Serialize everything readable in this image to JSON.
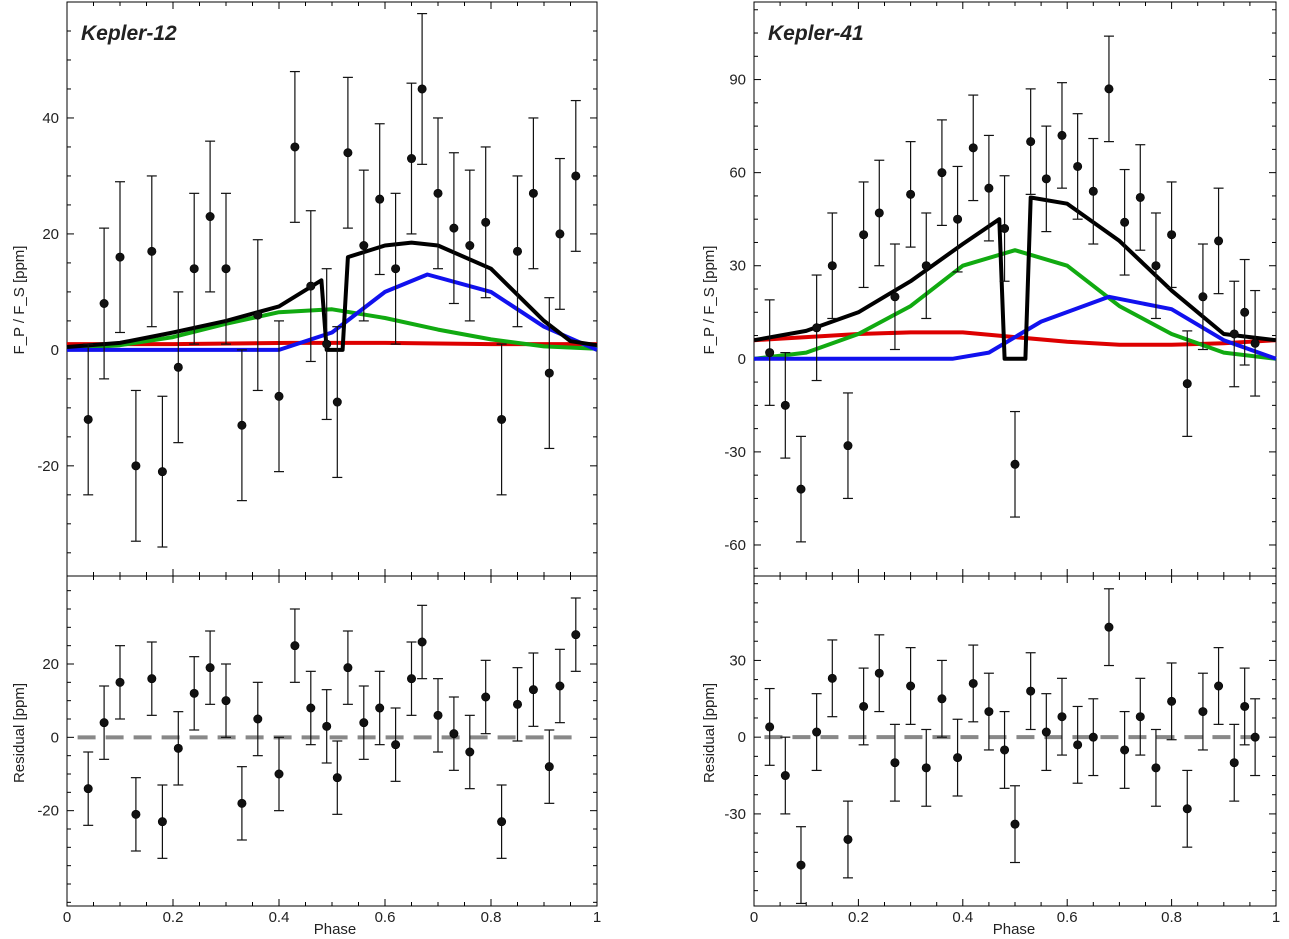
{
  "figure": {
    "xlabel": "Phase",
    "ylabel_top": "F_P / F_S [ppm]",
    "ylabel_bottom": "Residual [ppm]"
  },
  "chart_data": [
    {
      "type": "scatter",
      "panel": "Kepler-12 phase curve",
      "title": "Kepler-12",
      "xlabel": "Phase",
      "ylabel": "F_P / F_S [ppm]",
      "xlim": [
        0,
        1
      ],
      "ylim": [
        -39,
        60
      ],
      "xticks": [
        0,
        0.2,
        0.4,
        0.6,
        0.8,
        1
      ],
      "xtick_labels": [
        "0",
        "0.2",
        "0.4",
        "0.6",
        "0.8",
        "1"
      ],
      "yticks": [
        -20,
        0,
        20,
        40
      ],
      "ytick_labels": [
        "-20",
        "0",
        "20",
        "40"
      ],
      "grid": false,
      "error_bar": 13,
      "points": {
        "x": [
          0.04,
          0.07,
          0.1,
          0.13,
          0.16,
          0.18,
          0.21,
          0.24,
          0.27,
          0.3,
          0.33,
          0.36,
          0.4,
          0.43,
          0.46,
          0.49,
          0.51,
          0.53,
          0.56,
          0.59,
          0.62,
          0.65,
          0.67,
          0.7,
          0.73,
          0.76,
          0.79,
          0.82,
          0.85,
          0.88,
          0.91,
          0.93,
          0.96
        ],
        "y": [
          -12,
          8,
          16,
          -20,
          17,
          -21,
          -3,
          14,
          23,
          14,
          -13,
          6,
          -8,
          35,
          11,
          1,
          -9,
          34,
          18,
          26,
          14,
          33,
          45,
          27,
          21,
          18,
          22,
          -12,
          17,
          27,
          -4,
          20,
          30
        ]
      },
      "series": [
        {
          "color": "#dd0000",
          "x": [
            0,
            0.2,
            0.42,
            0.6,
            0.8,
            1
          ],
          "y": [
            1,
            1,
            1.2,
            1.2,
            1,
            1
          ]
        },
        {
          "color": "#11aa11",
          "x": [
            0,
            0.1,
            0.2,
            0.3,
            0.4,
            0.5,
            0.6,
            0.7,
            0.8,
            0.9,
            1
          ],
          "y": [
            0.2,
            0.8,
            2.2,
            4.5,
            6.5,
            7,
            5.5,
            3.5,
            1.8,
            0.6,
            0.2
          ]
        },
        {
          "color": "#1111ee",
          "x": [
            0,
            0.4,
            0.5,
            0.6,
            0.68,
            0.8,
            0.9,
            1
          ],
          "y": [
            0,
            0,
            3,
            10,
            13,
            10,
            4,
            0
          ]
        },
        {
          "color": "#000000",
          "x": [
            0,
            0.1,
            0.2,
            0.3,
            0.4,
            0.48,
            0.49,
            0.52,
            0.53,
            0.6,
            0.65,
            0.7,
            0.8,
            0.9,
            0.95,
            1
          ],
          "y": [
            0.5,
            1.2,
            3,
            5,
            7.5,
            12,
            0,
            0,
            16,
            18,
            18.5,
            18,
            14,
            5,
            1.5,
            0.8
          ]
        }
      ]
    },
    {
      "type": "scatter",
      "panel": "Kepler-12 residuals",
      "xlabel": "Phase",
      "ylabel": "Residual [ppm]",
      "xlim": [
        0,
        1
      ],
      "ylim": [
        -46,
        44
      ],
      "xticks": [
        0,
        0.2,
        0.4,
        0.6,
        0.8,
        1
      ],
      "xtick_labels": [
        "0",
        "0.2",
        "0.4",
        "0.6",
        "0.8",
        "1"
      ],
      "yticks": [
        -20,
        0,
        20
      ],
      "ytick_labels": [
        "-20",
        "0",
        "20"
      ],
      "grid": false,
      "error_bar": 10,
      "zero_line_color": "#888888",
      "points": {
        "x": [
          0.04,
          0.07,
          0.1,
          0.13,
          0.16,
          0.18,
          0.21,
          0.24,
          0.27,
          0.3,
          0.33,
          0.36,
          0.4,
          0.43,
          0.46,
          0.49,
          0.51,
          0.53,
          0.56,
          0.59,
          0.62,
          0.65,
          0.67,
          0.7,
          0.73,
          0.76,
          0.79,
          0.82,
          0.85,
          0.88,
          0.91,
          0.93,
          0.96
        ],
        "y": [
          -14,
          4,
          15,
          -21,
          16,
          -23,
          -3,
          12,
          19,
          10,
          -18,
          5,
          -10,
          25,
          8,
          3,
          -11,
          19,
          4,
          8,
          -2,
          16,
          26,
          6,
          1,
          -4,
          11,
          -23,
          9,
          13,
          -8,
          14,
          28
        ]
      }
    },
    {
      "type": "scatter",
      "panel": "Kepler-41 phase curve",
      "title": "Kepler-41",
      "xlabel": "Phase",
      "ylabel": "F_P / F_S [ppm]",
      "xlim": [
        0,
        1
      ],
      "ylim": [
        -70,
        115
      ],
      "xticks": [
        0,
        0.2,
        0.4,
        0.6,
        0.8,
        1
      ],
      "xtick_labels": [
        "0",
        "0.2",
        "0.4",
        "0.6",
        "0.8",
        "1"
      ],
      "yticks": [
        -60,
        -30,
        0,
        30,
        60,
        90
      ],
      "ytick_labels": [
        "-60",
        "-30",
        "0",
        "30",
        "60",
        "90"
      ],
      "grid": false,
      "error_bar": 17,
      "points": {
        "x": [
          0.03,
          0.06,
          0.09,
          0.12,
          0.15,
          0.18,
          0.21,
          0.24,
          0.27,
          0.3,
          0.33,
          0.36,
          0.39,
          0.42,
          0.45,
          0.48,
          0.5,
          0.53,
          0.56,
          0.59,
          0.62,
          0.65,
          0.68,
          0.71,
          0.74,
          0.77,
          0.8,
          0.83,
          0.86,
          0.89,
          0.92,
          0.94,
          0.96
        ],
        "y": [
          2,
          -15,
          -42,
          10,
          30,
          -28,
          40,
          47,
          20,
          53,
          30,
          60,
          45,
          68,
          55,
          42,
          -34,
          70,
          58,
          72,
          62,
          54,
          87,
          44,
          52,
          30,
          40,
          -8,
          20,
          38,
          8,
          15,
          5
        ]
      },
      "series": [
        {
          "color": "#dd0000",
          "x": [
            0,
            0.1,
            0.2,
            0.3,
            0.4,
            0.5,
            0.6,
            0.7,
            0.8,
            0.9,
            1
          ],
          "y": [
            6,
            7,
            8,
            8.5,
            8.5,
            7,
            5.5,
            4.5,
            4.5,
            5,
            6
          ]
        },
        {
          "color": "#11aa11",
          "x": [
            0,
            0.1,
            0.2,
            0.3,
            0.4,
            0.5,
            0.6,
            0.7,
            0.8,
            0.9,
            1
          ],
          "y": [
            0,
            2,
            8,
            17,
            30,
            35,
            30,
            17,
            8,
            2,
            0
          ]
        },
        {
          "color": "#1111ee",
          "x": [
            0,
            0.38,
            0.45,
            0.55,
            0.68,
            0.8,
            0.9,
            1
          ],
          "y": [
            0,
            0,
            2,
            12,
            20,
            16,
            6,
            0
          ]
        },
        {
          "color": "#000000",
          "x": [
            0,
            0.1,
            0.2,
            0.3,
            0.4,
            0.47,
            0.48,
            0.52,
            0.53,
            0.6,
            0.7,
            0.8,
            0.9,
            1
          ],
          "y": [
            6,
            9,
            15,
            25,
            37,
            45,
            0,
            0,
            52,
            50,
            38,
            22,
            8,
            6
          ]
        }
      ]
    },
    {
      "type": "scatter",
      "panel": "Kepler-41 residuals",
      "xlabel": "Phase",
      "ylabel": "Residual [ppm]",
      "xlim": [
        0,
        1
      ],
      "ylim": [
        -66,
        63
      ],
      "xticks": [
        0,
        0.2,
        0.4,
        0.6,
        0.8,
        1
      ],
      "xtick_labels": [
        "0",
        "0.2",
        "0.4",
        "0.6",
        "0.8",
        "1"
      ],
      "yticks": [
        -30,
        0,
        30
      ],
      "ytick_labels": [
        "-30",
        "0",
        "30"
      ],
      "grid": false,
      "error_bar": 15,
      "zero_line_color": "#888888",
      "points": {
        "x": [
          0.03,
          0.06,
          0.09,
          0.12,
          0.15,
          0.18,
          0.21,
          0.24,
          0.27,
          0.3,
          0.33,
          0.36,
          0.39,
          0.42,
          0.45,
          0.48,
          0.5,
          0.53,
          0.56,
          0.59,
          0.62,
          0.65,
          0.68,
          0.71,
          0.74,
          0.77,
          0.8,
          0.83,
          0.86,
          0.89,
          0.92,
          0.94,
          0.96
        ],
        "y": [
          4,
          -15,
          -50,
          2,
          23,
          -40,
          12,
          25,
          -10,
          20,
          -12,
          15,
          -8,
          21,
          10,
          -5,
          -34,
          18,
          2,
          8,
          -3,
          0,
          43,
          -5,
          8,
          -12,
          14,
          -28,
          10,
          20,
          -10,
          12,
          0
        ]
      }
    }
  ]
}
